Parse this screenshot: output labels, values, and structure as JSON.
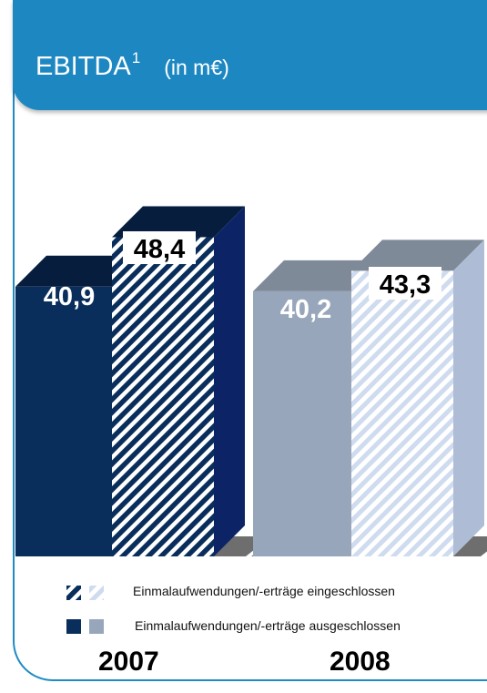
{
  "header": {
    "title": "EBITDA",
    "superscript": "1",
    "unit": "(in m€)"
  },
  "chart_data": {
    "type": "bar",
    "title": "EBITDA¹ (in m€)",
    "categories": [
      "2007",
      "2008"
    ],
    "series": [
      {
        "name": "Einmalaufwendungen/-erträge ausgeschlossen",
        "values": [
          40.9,
          40.2
        ]
      },
      {
        "name": "Einmalaufwendungen/-erträge eingeschlossen",
        "values": [
          48.4,
          43.3
        ]
      }
    ],
    "value_labels": [
      [
        "40,9",
        "48,4"
      ],
      [
        "40,2",
        "43,3"
      ]
    ],
    "ylim": [
      0,
      70
    ],
    "grid": false,
    "legend_position": "bottom"
  },
  "legend": {
    "included_label": "Einmalaufwendungen/-erträge eingeschlossen",
    "excluded_label": "Einmalaufwendungen/-erträge ausgeschlossen"
  },
  "colors": {
    "header": "#1d87c2",
    "border": "#1e8bc3",
    "navy": "#0a2e5c",
    "navy_top": "#061d3e",
    "navy_side": "#0c2466",
    "grey": "#98a6bb",
    "grey_top": "#7f8a99",
    "grey_side": "#aebdd5",
    "stripe_light": "#cfdbee",
    "floor": "#6e6e6e"
  }
}
